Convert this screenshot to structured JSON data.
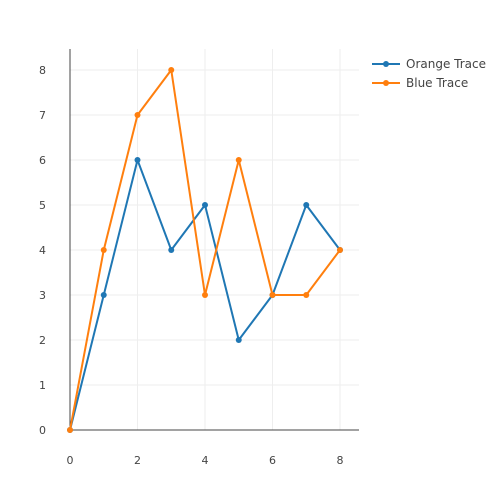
{
  "chart_data": {
    "type": "line",
    "title": "",
    "xlabel": "",
    "ylabel": "",
    "xlim": [
      0,
      8.6
    ],
    "ylim": [
      0,
      8.6
    ],
    "x_ticks": [
      0,
      2,
      4,
      6,
      8
    ],
    "y_ticks": [
      0,
      1,
      2,
      3,
      4,
      5,
      6,
      7,
      8
    ],
    "grid": true,
    "legend_position": "top-right",
    "x": [
      0,
      1,
      2,
      3,
      4,
      5,
      6,
      7,
      8
    ],
    "series": [
      {
        "name": "Orange Trace",
        "color": "#1f77b4",
        "values": [
          0,
          3,
          6,
          4,
          5,
          2,
          3,
          5,
          4
        ]
      },
      {
        "name": "Blue Trace",
        "color": "#ff7f0e",
        "values": [
          0,
          4,
          7,
          8,
          3,
          6,
          3,
          3,
          4
        ]
      }
    ]
  }
}
